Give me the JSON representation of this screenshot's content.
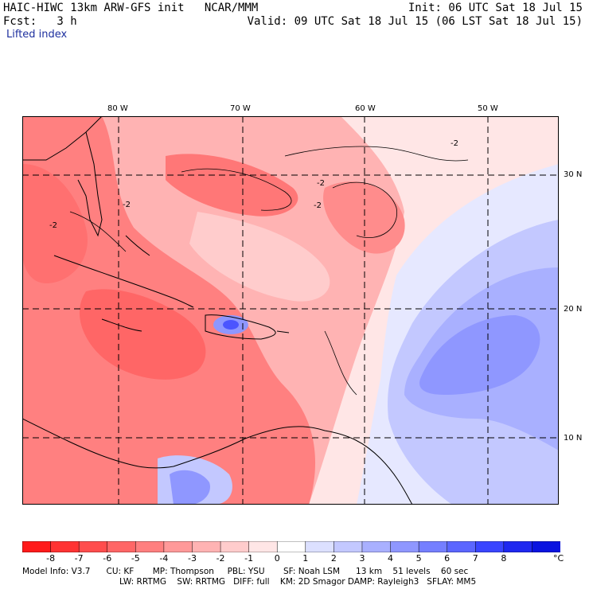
{
  "header": {
    "model_title": "HAIC-HIWC 13km ARW-GFS init   NCAR/MMM",
    "init": "Init: 06 UTC Sat 18 Jul 15",
    "fcst": "Fcst:   3 h",
    "valid": "Valid: 09 UTC Sat 18 Jul 15 (06 LST Sat 18 Jul 15)",
    "field": "Lifted index"
  },
  "map": {
    "lon_labels": [
      "80 W",
      "70 W",
      "60 W",
      "50 W"
    ],
    "lat_labels": [
      "30 N",
      "20 N",
      "10 N"
    ],
    "contour_label": "-2"
  },
  "colorbar": {
    "unit": "°C",
    "tick_labels": [
      "-8",
      "-7",
      "-6",
      "-5",
      "-4",
      "-3",
      "-2",
      "-1",
      "0",
      "1",
      "2",
      "3",
      "4",
      "5",
      "6",
      "7",
      "8"
    ],
    "colors": [
      "#ff1a1a",
      "#ff3333",
      "#ff4d4d",
      "#ff6666",
      "#ff7f7f",
      "#ff9999",
      "#ffb3b3",
      "#ffcccc",
      "#ffe6e6",
      "#ffffff",
      "#dce0ff",
      "#c3c8ff",
      "#a9b0ff",
      "#8f97ff",
      "#757fff",
      "#5b66ff",
      "#3a45ff",
      "#1f28f0",
      "#0a14e0"
    ]
  },
  "footer": {
    "line1": "Model Info: V3.7      CU: KF       MP: Thompson     PBL: YSU       SF: Noah LSM      13 km    51 levels    60 sec",
    "line2": "LW: RRTMG    SW: RRTMG   DIFF: full    KM: 2D Smagor DAMP: Rayleigh3   SFLAY: MM5"
  }
}
